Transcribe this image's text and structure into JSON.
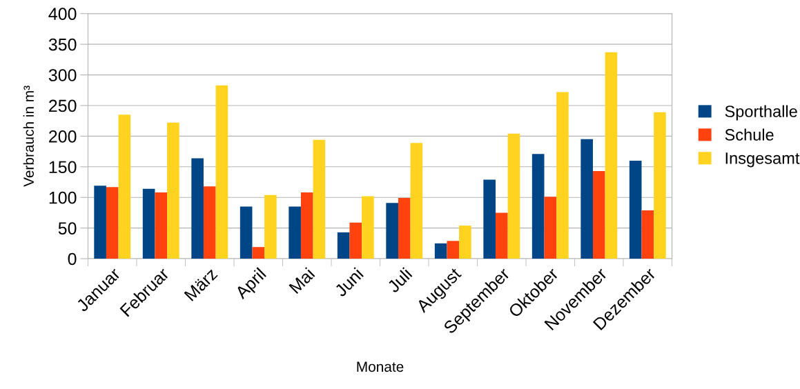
{
  "chart_data": {
    "type": "bar",
    "xlabel": "Monate",
    "ylabel": "Verbrauch in m³",
    "categories": [
      "Januar",
      "Februar",
      "März",
      "April",
      "Mai",
      "Juni",
      "Juli",
      "August",
      "September",
      "Oktober",
      "November",
      "Dezember"
    ],
    "series": [
      {
        "name": "Sporthalle",
        "color": "#004586",
        "values": [
          119,
          114,
          164,
          85,
          85,
          43,
          91,
          25,
          129,
          171,
          195,
          160
        ]
      },
      {
        "name": "Schule",
        "color": "#ff420e",
        "values": [
          117,
          108,
          118,
          19,
          108,
          59,
          99,
          29,
          75,
          101,
          143,
          79
        ]
      },
      {
        "name": "Insgesamt",
        "color": "#ffd320",
        "values": [
          235,
          222,
          283,
          104,
          194,
          102,
          189,
          54,
          204,
          272,
          337,
          239
        ]
      }
    ],
    "ylim": [
      0,
      400
    ],
    "yticks": [
      0,
      50,
      100,
      150,
      200,
      250,
      300,
      350,
      400
    ],
    "grid": "y",
    "legend": "right"
  }
}
